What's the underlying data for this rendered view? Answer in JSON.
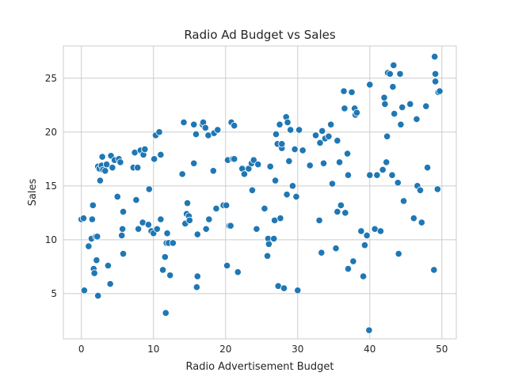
{
  "chart_data": {
    "type": "scatter",
    "title": "Radio Ad Budget vs Sales",
    "xlabel": "Radio Advertisement Budget",
    "ylabel": "Sales",
    "xlim": [
      -2.5,
      52.0
    ],
    "ylim": [
      0.8,
      28.0
    ],
    "xticks": [
      0,
      10,
      20,
      30,
      40,
      50
    ],
    "yticks": [
      5,
      10,
      15,
      20,
      25
    ],
    "grid": true,
    "color": "#1f77b4",
    "points": [
      [
        0.0,
        11.9
      ],
      [
        0.3,
        12.0
      ],
      [
        0.4,
        5.3
      ],
      [
        1.0,
        9.4
      ],
      [
        1.4,
        10.1
      ],
      [
        1.5,
        11.9
      ],
      [
        1.6,
        13.2
      ],
      [
        1.7,
        7.3
      ],
      [
        1.8,
        6.9
      ],
      [
        2.0,
        10.3
      ],
      [
        2.1,
        8.1
      ],
      [
        2.2,
        10.3
      ],
      [
        2.3,
        4.8
      ],
      [
        2.3,
        16.8
      ],
      [
        2.5,
        16.6
      ],
      [
        2.6,
        15.5
      ],
      [
        2.8,
        16.9
      ],
      [
        2.9,
        17.7
      ],
      [
        3.0,
        16.5
      ],
      [
        3.3,
        16.4
      ],
      [
        3.5,
        17.0
      ],
      [
        3.7,
        7.6
      ],
      [
        4.0,
        5.9
      ],
      [
        4.1,
        17.8
      ],
      [
        4.3,
        16.7
      ],
      [
        4.6,
        17.4
      ],
      [
        5.0,
        14.0
      ],
      [
        5.2,
        17.5
      ],
      [
        5.4,
        17.2
      ],
      [
        5.6,
        10.4
      ],
      [
        5.7,
        11.0
      ],
      [
        5.8,
        8.7
      ],
      [
        5.8,
        12.6
      ],
      [
        7.2,
        16.7
      ],
      [
        7.4,
        18.1
      ],
      [
        7.6,
        13.7
      ],
      [
        7.8,
        16.7
      ],
      [
        7.9,
        11.0
      ],
      [
        8.2,
        18.3
      ],
      [
        8.5,
        11.6
      ],
      [
        8.6,
        17.9
      ],
      [
        8.8,
        18.4
      ],
      [
        9.3,
        11.4
      ],
      [
        9.4,
        14.7
      ],
      [
        9.7,
        10.8
      ],
      [
        10.0,
        10.6
      ],
      [
        10.1,
        17.5
      ],
      [
        10.3,
        19.7
      ],
      [
        10.5,
        11.0
      ],
      [
        10.8,
        20.0
      ],
      [
        11.0,
        17.9
      ],
      [
        11.0,
        11.9
      ],
      [
        11.3,
        7.2
      ],
      [
        11.6,
        8.4
      ],
      [
        11.7,
        3.2
      ],
      [
        11.8,
        9.7
      ],
      [
        11.9,
        10.6
      ],
      [
        12.1,
        9.7
      ],
      [
        12.3,
        6.7
      ],
      [
        12.7,
        9.7
      ],
      [
        14.0,
        16.1
      ],
      [
        14.2,
        20.9
      ],
      [
        14.4,
        11.5
      ],
      [
        14.6,
        12.4
      ],
      [
        14.7,
        13.4
      ],
      [
        14.9,
        12.2
      ],
      [
        15.0,
        11.8
      ],
      [
        15.6,
        17.1
      ],
      [
        15.6,
        20.7
      ],
      [
        15.9,
        19.8
      ],
      [
        16.0,
        5.6
      ],
      [
        16.1,
        6.6
      ],
      [
        16.1,
        10.5
      ],
      [
        16.8,
        20.7
      ],
      [
        16.9,
        20.9
      ],
      [
        17.2,
        20.4
      ],
      [
        17.3,
        11.0
      ],
      [
        17.6,
        19.7
      ],
      [
        17.7,
        11.9
      ],
      [
        18.3,
        16.4
      ],
      [
        18.4,
        19.9
      ],
      [
        18.7,
        12.9
      ],
      [
        18.9,
        20.2
      ],
      [
        19.7,
        13.2
      ],
      [
        20.1,
        13.2
      ],
      [
        20.2,
        7.6
      ],
      [
        20.3,
        17.4
      ],
      [
        20.5,
        11.3
      ],
      [
        20.7,
        11.3
      ],
      [
        20.8,
        20.9
      ],
      [
        21.0,
        17.5
      ],
      [
        21.2,
        17.5
      ],
      [
        21.2,
        20.6
      ],
      [
        21.7,
        7.0
      ],
      [
        22.3,
        16.6
      ],
      [
        22.6,
        16.1
      ],
      [
        23.2,
        16.6
      ],
      [
        23.6,
        17.1
      ],
      [
        23.7,
        14.6
      ],
      [
        23.9,
        17.4
      ],
      [
        24.3,
        11.0
      ],
      [
        24.5,
        17.0
      ],
      [
        25.4,
        12.9
      ],
      [
        25.8,
        8.5
      ],
      [
        25.9,
        10.1
      ],
      [
        26.0,
        9.6
      ],
      [
        26.2,
        16.8
      ],
      [
        26.7,
        10.1
      ],
      [
        26.8,
        11.8
      ],
      [
        26.9,
        15.5
      ],
      [
        27.0,
        19.8
      ],
      [
        27.2,
        18.9
      ],
      [
        27.3,
        5.7
      ],
      [
        27.5,
        20.7
      ],
      [
        27.6,
        12.0
      ],
      [
        27.8,
        18.5
      ],
      [
        27.8,
        18.9
      ],
      [
        28.1,
        5.5
      ],
      [
        28.4,
        21.4
      ],
      [
        28.5,
        14.2
      ],
      [
        28.6,
        20.9
      ],
      [
        28.8,
        17.3
      ],
      [
        29.0,
        20.2
      ],
      [
        29.3,
        15.0
      ],
      [
        29.6,
        18.4
      ],
      [
        29.8,
        14.0
      ],
      [
        30.0,
        5.3
      ],
      [
        30.2,
        20.2
      ],
      [
        30.7,
        18.3
      ],
      [
        31.7,
        16.9
      ],
      [
        32.5,
        19.7
      ],
      [
        33.0,
        11.8
      ],
      [
        33.1,
        19.0
      ],
      [
        33.3,
        8.8
      ],
      [
        33.4,
        20.1
      ],
      [
        33.6,
        17.1
      ],
      [
        33.8,
        19.4
      ],
      [
        34.3,
        19.6
      ],
      [
        34.6,
        20.7
      ],
      [
        34.8,
        15.2
      ],
      [
        35.3,
        9.2
      ],
      [
        35.5,
        12.6
      ],
      [
        35.5,
        19.2
      ],
      [
        35.8,
        17.2
      ],
      [
        36.0,
        13.2
      ],
      [
        36.4,
        23.8
      ],
      [
        36.5,
        22.2
      ],
      [
        36.6,
        12.5
      ],
      [
        36.9,
        18.0
      ],
      [
        37.0,
        16.0
      ],
      [
        37.0,
        7.3
      ],
      [
        37.5,
        23.7
      ],
      [
        37.7,
        8.0
      ],
      [
        37.9,
        22.2
      ],
      [
        38.0,
        21.6
      ],
      [
        38.2,
        21.8
      ],
      [
        38.8,
        10.8
      ],
      [
        39.1,
        6.6
      ],
      [
        39.3,
        9.5
      ],
      [
        39.6,
        10.4
      ],
      [
        39.9,
        1.6
      ],
      [
        40.0,
        16.0
      ],
      [
        40.0,
        24.4
      ],
      [
        40.7,
        11.0
      ],
      [
        41.0,
        16.0
      ],
      [
        41.5,
        10.8
      ],
      [
        41.8,
        16.5
      ],
      [
        42.0,
        23.2
      ],
      [
        42.1,
        22.6
      ],
      [
        42.3,
        17.2
      ],
      [
        42.4,
        19.6
      ],
      [
        42.5,
        25.5
      ],
      [
        42.8,
        25.4
      ],
      [
        43.1,
        16.0
      ],
      [
        43.2,
        24.2
      ],
      [
        43.3,
        26.2
      ],
      [
        43.4,
        21.7
      ],
      [
        43.9,
        15.3
      ],
      [
        44.0,
        8.7
      ],
      [
        44.2,
        25.4
      ],
      [
        44.3,
        20.7
      ],
      [
        44.5,
        22.3
      ],
      [
        44.7,
        13.6
      ],
      [
        45.6,
        22.6
      ],
      [
        46.1,
        12.0
      ],
      [
        46.5,
        21.2
      ],
      [
        46.6,
        15.0
      ],
      [
        47.0,
        14.6
      ],
      [
        47.2,
        11.6
      ],
      [
        47.8,
        22.4
      ],
      [
        48.0,
        16.7
      ],
      [
        48.9,
        7.2
      ],
      [
        49.0,
        27.0
      ],
      [
        49.1,
        25.4
      ],
      [
        49.1,
        24.7
      ],
      [
        49.4,
        14.7
      ],
      [
        49.5,
        23.7
      ],
      [
        49.7,
        23.8
      ]
    ]
  }
}
